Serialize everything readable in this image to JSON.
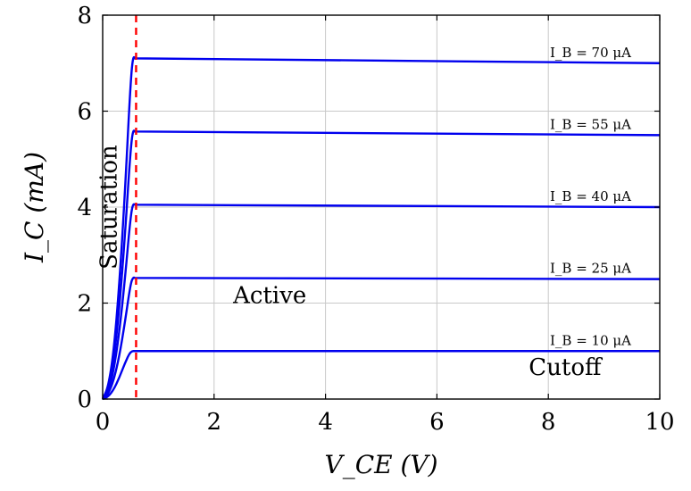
{
  "chart_data": {
    "type": "line",
    "title": "",
    "xlabel": "V_CE (V)",
    "ylabel": "I_C (mA)",
    "xlim": [
      0,
      10
    ],
    "ylim": [
      0,
      8
    ],
    "xticks": [
      "0",
      "2",
      "4",
      "6",
      "8",
      "10"
    ],
    "yticks": [
      "0",
      "2",
      "4",
      "6",
      "8"
    ],
    "grid": true,
    "series_color": "#0000ee",
    "saturation_line": {
      "x": 0.6,
      "color": "#ff0000",
      "style": "dashed"
    },
    "series": [
      {
        "name": "I_B = 10 μA",
        "x": [
          0,
          0.1,
          0.2,
          0.3,
          0.4,
          0.5,
          0.6,
          10
        ],
        "y": [
          0,
          0.05,
          0.2,
          0.45,
          0.75,
          1.0,
          1.0,
          1.0
        ]
      },
      {
        "name": "I_B = 25 μA",
        "x": [
          0,
          0.1,
          0.2,
          0.3,
          0.4,
          0.5,
          0.55,
          0.6,
          10
        ],
        "y": [
          0,
          0.1,
          0.4,
          0.9,
          1.6,
          2.4,
          2.55,
          2.5,
          2.5
        ]
      },
      {
        "name": "I_B = 40 μA",
        "x": [
          0,
          0.1,
          0.2,
          0.3,
          0.4,
          0.5,
          0.55,
          0.6,
          10
        ],
        "y": [
          0,
          0.15,
          0.6,
          1.4,
          2.5,
          3.8,
          4.1,
          4.0,
          4.0
        ]
      },
      {
        "name": "I_B = 55 μA",
        "x": [
          0,
          0.1,
          0.2,
          0.3,
          0.4,
          0.5,
          0.55,
          0.6,
          10
        ],
        "y": [
          0,
          0.2,
          0.8,
          1.9,
          3.4,
          5.2,
          5.65,
          5.5,
          5.5
        ]
      },
      {
        "name": "I_B = 70 μA",
        "x": [
          0,
          0.1,
          0.2,
          0.3,
          0.4,
          0.5,
          0.55,
          0.6,
          10
        ],
        "y": [
          0,
          0.25,
          1.0,
          2.4,
          4.3,
          6.6,
          7.2,
          7.0,
          7.0
        ]
      }
    ],
    "annotations": [
      {
        "text": "Saturation",
        "x": 0.25,
        "y": 4.0,
        "rotate": -90
      },
      {
        "text": "Active",
        "x": 3.0,
        "y": 2.0
      },
      {
        "text": "Cutoff",
        "x": 8.3,
        "y": 0.5
      }
    ]
  }
}
